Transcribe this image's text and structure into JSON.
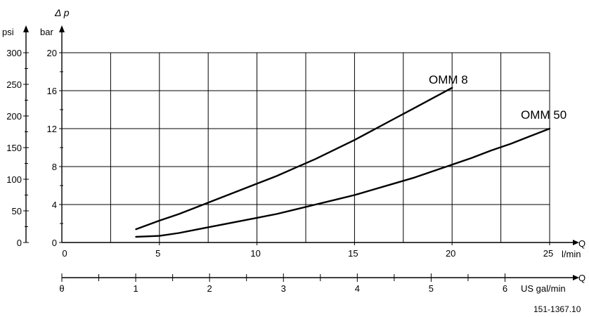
{
  "chart_data": {
    "type": "line",
    "ylabel": "Δ p",
    "y_units": [
      "psi",
      "bar"
    ],
    "x_axis_label": "Q",
    "x_units": [
      "l/min",
      "US gal/min"
    ],
    "xlim": [
      0,
      25
    ],
    "ylim_bar": [
      0,
      20
    ],
    "ylim_psi": [
      0,
      300
    ],
    "x_ticks": [
      0,
      5,
      10,
      15,
      20,
      25
    ],
    "y_ticks_bar": [
      0,
      4,
      8,
      12,
      16,
      20
    ],
    "y_ticks_psi": [
      0,
      50,
      100,
      150,
      200,
      250,
      300
    ],
    "x2_ticks_usgal": [
      0,
      1,
      2,
      3,
      4,
      5,
      6
    ],
    "x2_zero_label": "θ",
    "grid": true,
    "series": [
      {
        "name": "OMM 8",
        "x": [
          3.8,
          5,
          6,
          7,
          8,
          9,
          10,
          11,
          12,
          13,
          14,
          15,
          16,
          17,
          18,
          19,
          20
        ],
        "y": [
          1.4,
          2.3,
          3.0,
          3.8,
          4.6,
          5.4,
          6.2,
          7.0,
          7.9,
          8.8,
          9.8,
          10.8,
          11.9,
          13.0,
          14.1,
          15.2,
          16.3
        ]
      },
      {
        "name": "OMM 50",
        "x": [
          3.8,
          5,
          6,
          7,
          8,
          9,
          10,
          11,
          12,
          13,
          14,
          15,
          16,
          17,
          18,
          19,
          20,
          21,
          22,
          23,
          24,
          25
        ],
        "y": [
          0.6,
          0.7,
          1.0,
          1.4,
          1.8,
          2.2,
          2.6,
          3.0,
          3.5,
          4.0,
          4.5,
          5.0,
          5.6,
          6.2,
          6.8,
          7.5,
          8.2,
          8.9,
          9.7,
          10.4,
          11.2,
          12.0
        ]
      }
    ]
  },
  "figure_code": "151-1367.10"
}
